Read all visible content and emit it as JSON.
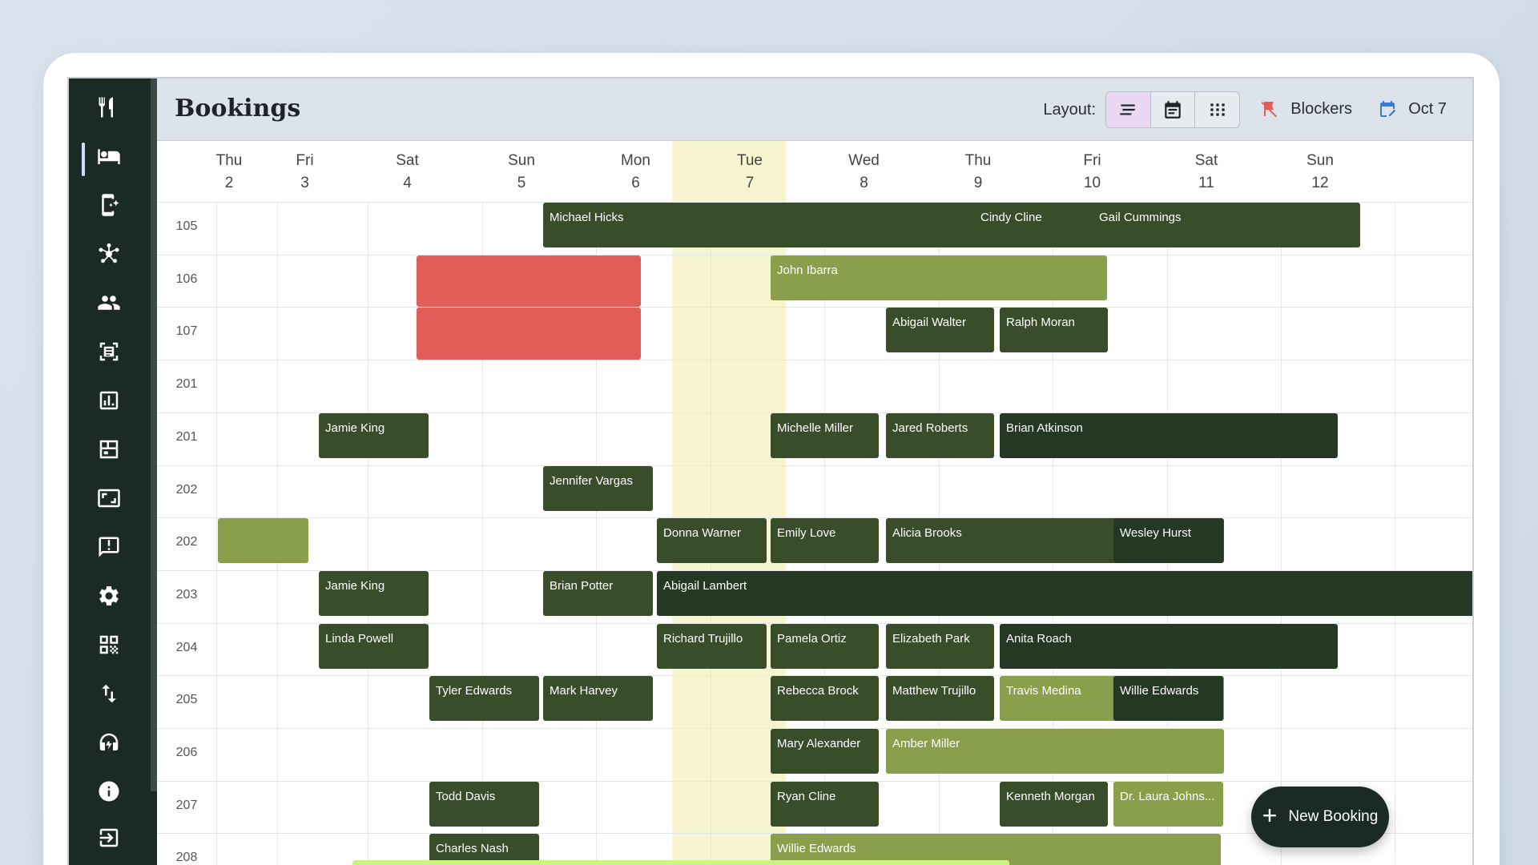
{
  "header": {
    "title": "Bookings",
    "layout_label": "Layout:",
    "blockers_label": "Blockers",
    "date_label": "Oct 7"
  },
  "days": [
    {
      "name": "Thu",
      "date": "2"
    },
    {
      "name": "Fri",
      "date": "3"
    },
    {
      "name": "Sat",
      "date": "4"
    },
    {
      "name": "Sun",
      "date": "5"
    },
    {
      "name": "Mon",
      "date": "6"
    },
    {
      "name": "Tue",
      "date": "7"
    },
    {
      "name": "Wed",
      "date": "8"
    },
    {
      "name": "Thu",
      "date": "9"
    },
    {
      "name": "Fri",
      "date": "10"
    },
    {
      "name": "Sat",
      "date": "11"
    },
    {
      "name": "Sun",
      "date": "12"
    }
  ],
  "rooms": [
    "105",
    "106",
    "107",
    "201",
    "201",
    "202",
    "202",
    "203",
    "204",
    "205",
    "206",
    "207",
    "208"
  ],
  "bookings": [
    {
      "row": 0,
      "name": "Michael Hicks",
      "style": "d"
    },
    {
      "row": 0,
      "name": "Cindy Cline",
      "style": "d"
    },
    {
      "row": 0,
      "name": "Gail Cummings",
      "style": "d"
    },
    {
      "row": 1,
      "name": "John Ibarra",
      "style": "l"
    },
    {
      "row": 2,
      "name": "Abigail Walter",
      "style": "d"
    },
    {
      "row": 2,
      "name": "Ralph Moran",
      "style": "d"
    },
    {
      "row": 4,
      "name": "Jamie King",
      "style": "d"
    },
    {
      "row": 4,
      "name": "Michelle Miller",
      "style": "d"
    },
    {
      "row": 4,
      "name": "Jared Roberts",
      "style": "d"
    },
    {
      "row": 4,
      "name": "Brian Atkinson",
      "style": "dd"
    },
    {
      "row": 5,
      "name": "Jennifer Vargas",
      "style": "d"
    },
    {
      "row": 6,
      "name": "Donna Warner",
      "style": "d"
    },
    {
      "row": 6,
      "name": "Emily Love",
      "style": "d"
    },
    {
      "row": 6,
      "name": "Alicia Brooks",
      "style": "d"
    },
    {
      "row": 6,
      "name": "Wesley Hurst",
      "style": "dd"
    },
    {
      "row": 7,
      "name": "Jamie King",
      "style": "d"
    },
    {
      "row": 7,
      "name": "Brian Potter",
      "style": "d"
    },
    {
      "row": 7,
      "name": "Abigail Lambert",
      "style": "dd"
    },
    {
      "row": 8,
      "name": "Linda Powell",
      "style": "d"
    },
    {
      "row": 8,
      "name": "Richard Trujillo",
      "style": "d"
    },
    {
      "row": 8,
      "name": "Pamela Ortiz",
      "style": "d"
    },
    {
      "row": 8,
      "name": "Elizabeth Park",
      "style": "d"
    },
    {
      "row": 8,
      "name": "Anita Roach",
      "style": "dd"
    },
    {
      "row": 9,
      "name": "Tyler Edwards",
      "style": "d"
    },
    {
      "row": 9,
      "name": "Mark Harvey",
      "style": "d"
    },
    {
      "row": 9,
      "name": "Rebecca Brock",
      "style": "d"
    },
    {
      "row": 9,
      "name": "Matthew Trujillo",
      "style": "d"
    },
    {
      "row": 9,
      "name": "Travis Medina",
      "style": "l"
    },
    {
      "row": 9,
      "name": "Willie Edwards",
      "style": "dd"
    },
    {
      "row": 10,
      "name": "Mary Alexander",
      "style": "d"
    },
    {
      "row": 10,
      "name": "Amber Miller",
      "style": "l"
    },
    {
      "row": 11,
      "name": "Todd Davis",
      "style": "d"
    },
    {
      "row": 11,
      "name": "Ryan Cline",
      "style": "d"
    },
    {
      "row": 11,
      "name": "Kenneth Morgan",
      "style": "d"
    },
    {
      "row": 11,
      "name": "Dr. Laura Johns...",
      "style": "l"
    },
    {
      "row": 12,
      "name": "Charles Nash",
      "style": "d"
    },
    {
      "row": 12,
      "name": "Willie Edwards",
      "style": "l"
    }
  ],
  "fab": {
    "label": "New Booking"
  },
  "colors": {
    "sidebar": "#1b2a23",
    "booking_dark": "#3a4d2a",
    "booking_darker": "#243824",
    "booking_light": "#8a9f4c",
    "blocker": "#e25e59",
    "today": "#f7f5cf"
  }
}
